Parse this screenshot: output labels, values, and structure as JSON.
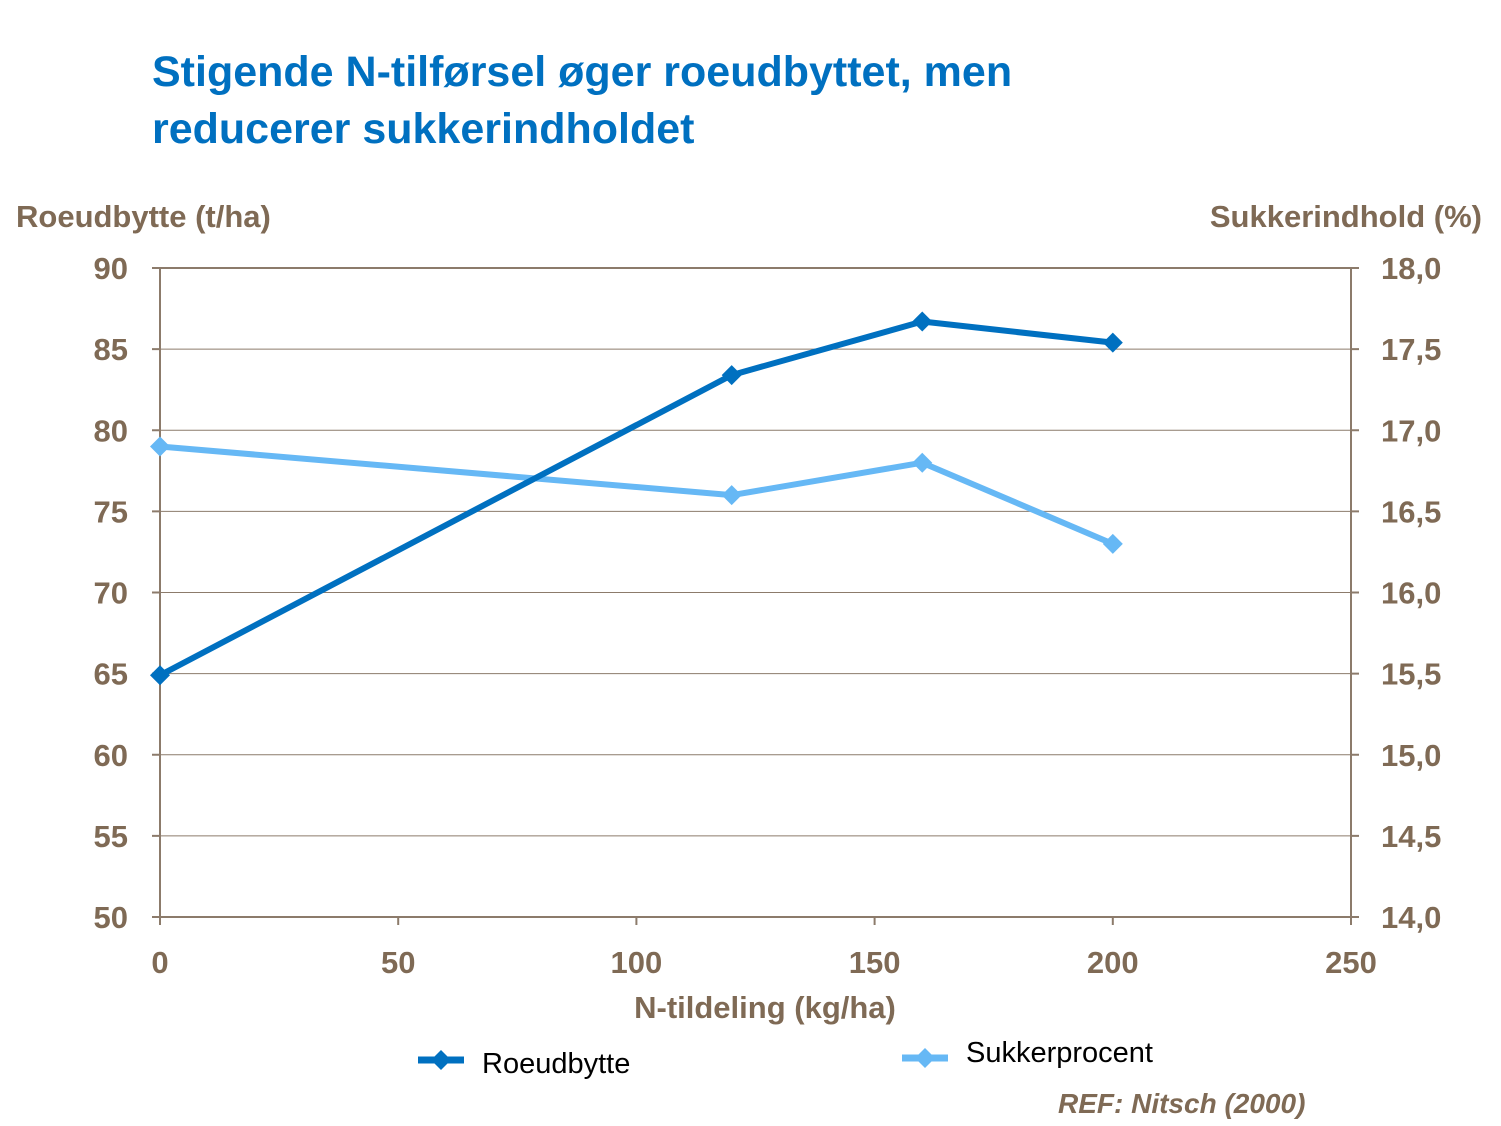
{
  "title_lines": [
    "Stigende N-tilførsel øger roeudbyttet, men",
    "reducerer sukkerindholdet"
  ],
  "reference": "REF: Nitsch (2000)",
  "colors": {
    "title": "#0070C0",
    "axis_text": "#7F6A55",
    "series_roeudbytte": "#0070C0",
    "series_sukkerprocent": "#66B8F5",
    "gridline": "#8C7B6B"
  },
  "chart_data": {
    "type": "line",
    "title": "Stigende N-tilførsel øger roeudbyttet, men reducerer sukkerindholdet",
    "xlabel": "N-tildeling (kg/ha)",
    "ylabel_left": "Roeudbytte (t/ha)",
    "ylabel_right": "Sukkerindhold (%)",
    "xlim": [
      0,
      250
    ],
    "ylim_left": [
      50,
      90
    ],
    "ylim_right": [
      14.0,
      18.0
    ],
    "x_ticks": [
      "0",
      "50",
      "100",
      "150",
      "200",
      "250"
    ],
    "y_left_ticks": [
      "50",
      "55",
      "60",
      "65",
      "70",
      "75",
      "80",
      "85",
      "90"
    ],
    "y_right_ticks": [
      "14,0",
      "14,5",
      "15,0",
      "15,5",
      "16,0",
      "16,5",
      "17,0",
      "17,5",
      "18,0"
    ],
    "grid": true,
    "series": [
      {
        "name": "Roeudbytte",
        "axis": "left",
        "x": [
          0,
          120,
          160,
          200
        ],
        "values": [
          64.9,
          83.4,
          86.7,
          85.4
        ]
      },
      {
        "name": "Sukkerprocent",
        "axis": "right",
        "x": [
          0,
          120,
          160,
          200
        ],
        "values": [
          16.9,
          16.6,
          16.8,
          16.3
        ]
      }
    ]
  }
}
